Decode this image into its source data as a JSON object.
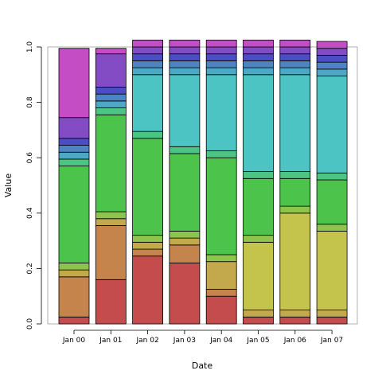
{
  "chart_data": {
    "type": "bar",
    "stacked": true,
    "xlabel": "Date",
    "ylabel": "Value",
    "ylim": [
      0,
      1
    ],
    "y_ticks": [
      "0.0",
      "0.2",
      "0.4",
      "0.6",
      "0.8",
      "1.0"
    ],
    "grid": false,
    "categories": [
      "Jan 00",
      "Jan 01",
      "Jan 02",
      "Jan 03",
      "Jan 04",
      "Jan 05",
      "Jan 06",
      "Jan 07"
    ],
    "series": [
      {
        "color": "#c44c4c",
        "values": [
          0.025,
          0.16,
          0.245,
          0.22,
          0.1,
          0.025,
          0.025,
          0.025
        ]
      },
      {
        "color": "#c4844c",
        "values": [
          0.145,
          0.195,
          0.025,
          0.065,
          0.025,
          0.0,
          0.0,
          0.0
        ]
      },
      {
        "color": "#c4a84c",
        "values": [
          0.025,
          0.025,
          0.025,
          0.025,
          0.1,
          0.025,
          0.025,
          0.025
        ]
      },
      {
        "color": "#c4c44c",
        "values": [
          0.0,
          0.0,
          0.0,
          0.0,
          0.0,
          0.245,
          0.35,
          0.285
        ]
      },
      {
        "color": "#8cc44c",
        "values": [
          0.025,
          0.025,
          0.025,
          0.025,
          0.025,
          0.025,
          0.025,
          0.025
        ]
      },
      {
        "color": "#4cc44c",
        "values": [
          0.35,
          0.35,
          0.35,
          0.28,
          0.35,
          0.205,
          0.1,
          0.16
        ]
      },
      {
        "color": "#4cc484",
        "values": [
          0.025,
          0.025,
          0.025,
          0.025,
          0.025,
          0.025,
          0.025,
          0.025
        ]
      },
      {
        "color": "#4cc4c4",
        "values": [
          0.0,
          0.0,
          0.205,
          0.26,
          0.275,
          0.35,
          0.35,
          0.35
        ]
      },
      {
        "color": "#4ca8c4",
        "values": [
          0.025,
          0.025,
          0.025,
          0.025,
          0.025,
          0.025,
          0.025,
          0.025
        ]
      },
      {
        "color": "#4c84c4",
        "values": [
          0.025,
          0.025,
          0.025,
          0.025,
          0.025,
          0.025,
          0.025,
          0.025
        ]
      },
      {
        "color": "#4c4cc4",
        "values": [
          0.025,
          0.025,
          0.025,
          0.025,
          0.025,
          0.025,
          0.025,
          0.025
        ]
      },
      {
        "color": "#844cc4",
        "values": [
          0.075,
          0.12,
          0.025,
          0.025,
          0.025,
          0.025,
          0.025,
          0.025
        ]
      },
      {
        "color": "#c44cc4",
        "values": [
          0.25,
          0.02,
          0.025,
          0.025,
          0.025,
          0.025,
          0.025,
          0.025
        ]
      }
    ]
  }
}
